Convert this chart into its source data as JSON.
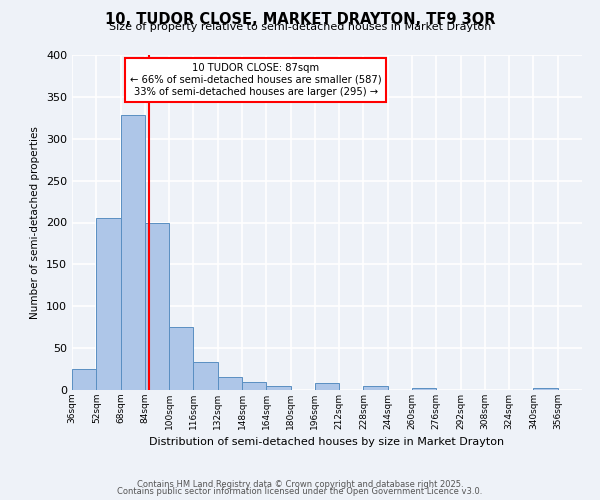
{
  "title": "10, TUDOR CLOSE, MARKET DRAYTON, TF9 3QR",
  "subtitle": "Size of property relative to semi-detached houses in Market Drayton",
  "xlabel": "Distribution of semi-detached houses by size in Market Drayton",
  "ylabel": "Number of semi-detached properties",
  "bin_labels": [
    "36sqm",
    "52sqm",
    "68sqm",
    "84sqm",
    "100sqm",
    "116sqm",
    "132sqm",
    "148sqm",
    "164sqm",
    "180sqm",
    "196sqm",
    "212sqm",
    "228sqm",
    "244sqm",
    "260sqm",
    "276sqm",
    "292sqm",
    "308sqm",
    "324sqm",
    "340sqm",
    "356sqm"
  ],
  "bin_edges": [
    36,
    52,
    68,
    84,
    100,
    116,
    132,
    148,
    164,
    180,
    196,
    212,
    228,
    244,
    260,
    276,
    292,
    308,
    324,
    340,
    356,
    372
  ],
  "bar_values": [
    25,
    205,
    328,
    200,
    75,
    33,
    16,
    10,
    5,
    0,
    8,
    0,
    5,
    0,
    2,
    0,
    0,
    0,
    0,
    2,
    0
  ],
  "bar_color": "#aec6e8",
  "bar_edge_color": "#5a8fc2",
  "vline_x": 87,
  "vline_color": "red",
  "annotation_title": "10 TUDOR CLOSE: 87sqm",
  "annotation_line1": "← 66% of semi-detached houses are smaller (587)",
  "annotation_line2": "33% of semi-detached houses are larger (295) →",
  "annotation_box_color": "red",
  "ylim": [
    0,
    400
  ],
  "yticks": [
    0,
    50,
    100,
    150,
    200,
    250,
    300,
    350,
    400
  ],
  "background_color": "#eef2f8",
  "grid_color": "white",
  "footer1": "Contains HM Land Registry data © Crown copyright and database right 2025.",
  "footer2": "Contains public sector information licensed under the Open Government Licence v3.0."
}
